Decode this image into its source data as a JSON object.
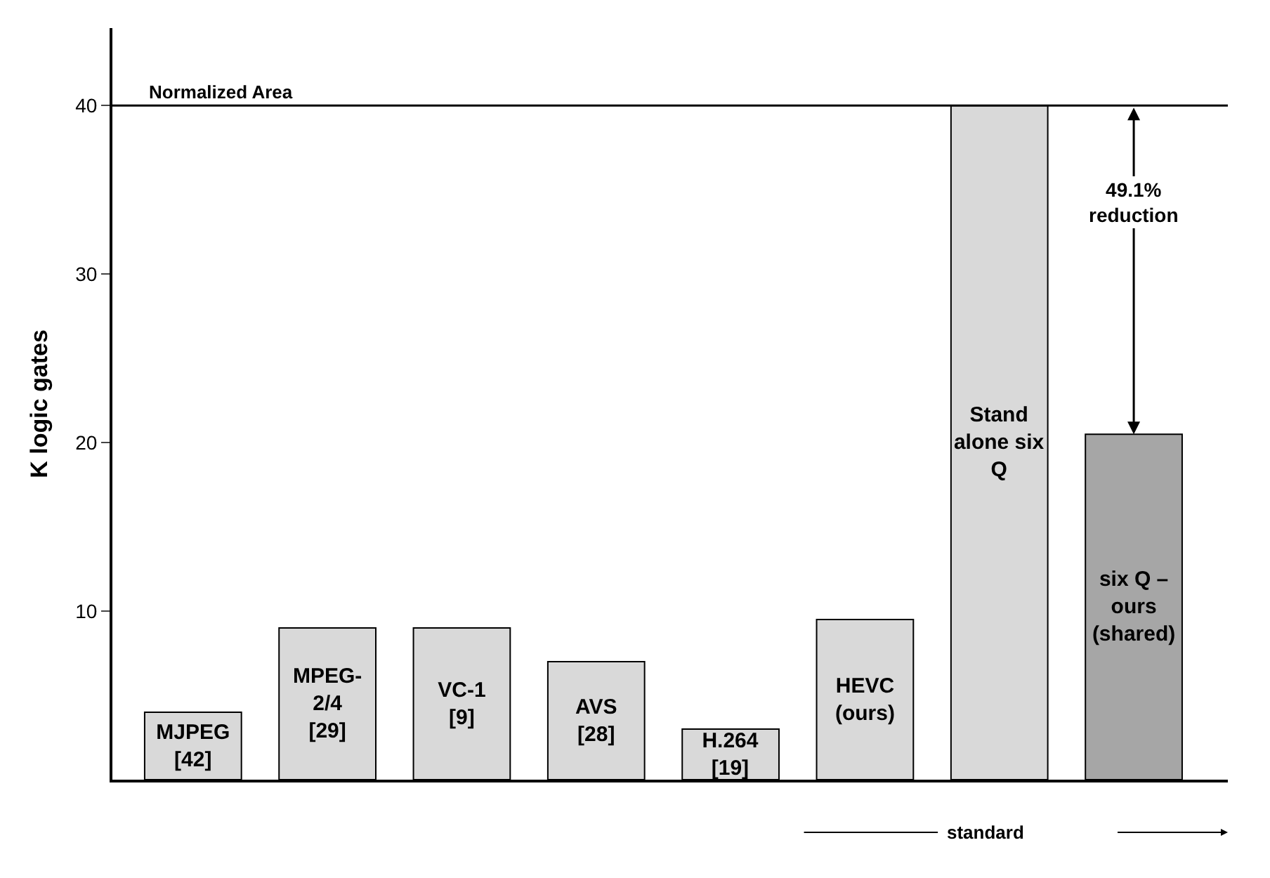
{
  "chart_data": {
    "type": "bar",
    "xlabel": "standard",
    "ylabel": "K logic gates",
    "categories": [
      "MJPEG\n[42]",
      "MPEG-\n2/4\n[29]",
      "VC-1\n[9]",
      "AVS\n[28]",
      "H.264\n[19]",
      "HEVC\n(ours)",
      "Stand\nalone six\nQ",
      "six Q –\nours\n(shared)"
    ],
    "values": [
      4,
      9,
      9,
      7,
      3,
      9.5,
      40,
      20.5
    ],
    "colors": [
      "#d9d9d9",
      "#d9d9d9",
      "#d9d9d9",
      "#d9d9d9",
      "#d9d9d9",
      "#d9d9d9",
      "#d9d9d9",
      "#a6a6a6"
    ],
    "ylim": [
      0,
      44.6
    ],
    "yticks": [
      10,
      20,
      30,
      40
    ],
    "tick_labels": "y",
    "ref_lines": [
      {
        "axis": "y",
        "value": 40,
        "label": "Normalized Area",
        "color": "#000000"
      }
    ],
    "annotations": [
      "49.1%\nreduction"
    ]
  }
}
